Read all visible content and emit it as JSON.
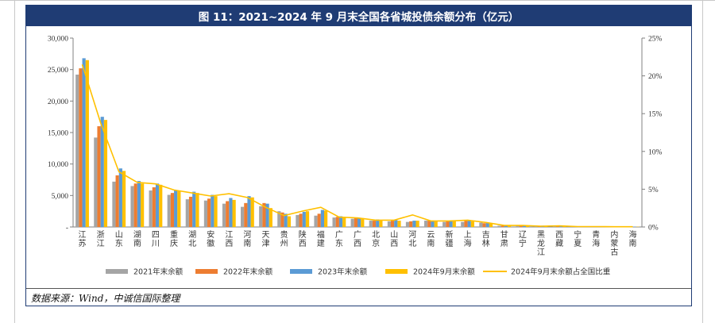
{
  "title": "图 11：2021~2024 年 9 月末全国各省城投债余额分布（亿元）",
  "source": "数据来源：Wind，中诚信国际整理",
  "chart_data": {
    "type": "bar",
    "categories": [
      "江苏",
      "浙江",
      "山东",
      "湖南",
      "四川",
      "重庆",
      "湖北",
      "安徽",
      "江西",
      "河南",
      "天津",
      "贵州",
      "陕西",
      "福建",
      "广东",
      "广西",
      "北京",
      "山西",
      "河北",
      "云南",
      "新疆",
      "上海",
      "吉林",
      "甘肃",
      "辽宁",
      "黑龙江",
      "西藏",
      "宁夏",
      "青海",
      "内蒙古",
      "海南"
    ],
    "series": [
      {
        "name": "2021年末余额",
        "color": "#a5a5a5",
        "values": [
          24200,
          14200,
          7200,
          6500,
          5800,
          5100,
          4400,
          4200,
          3700,
          3200,
          3300,
          2500,
          1900,
          1800,
          1500,
          1300,
          1000,
          900,
          800,
          1000,
          800,
          800,
          700,
          200,
          200,
          100,
          100,
          80,
          60,
          50,
          30
        ]
      },
      {
        "name": "2022年末余额",
        "color": "#ed7d31",
        "values": [
          25200,
          16000,
          8200,
          6900,
          6300,
          5400,
          4800,
          4500,
          4100,
          3800,
          3800,
          2300,
          2100,
          2100,
          1600,
          1400,
          1000,
          1000,
          900,
          1000,
          900,
          1000,
          600,
          200,
          200,
          150,
          150,
          70,
          50,
          50,
          30
        ]
      },
      {
        "name": "2023年末余额",
        "color": "#5b9bd5",
        "values": [
          26800,
          17500,
          9300,
          7300,
          6900,
          5800,
          5600,
          5100,
          4600,
          4900,
          3700,
          2100,
          2400,
          2700,
          1700,
          1400,
          1200,
          1100,
          1000,
          1000,
          1000,
          1000,
          700,
          300,
          200,
          200,
          200,
          80,
          60,
          50,
          50
        ]
      },
      {
        "name": "2024年9月末余额",
        "color": "#ffc000",
        "values": [
          26500,
          17000,
          8900,
          6900,
          6700,
          5700,
          5400,
          4900,
          4300,
          4700,
          3000,
          1700,
          2500,
          2600,
          1500,
          1400,
          1100,
          1000,
          1000,
          900,
          1000,
          900,
          600,
          300,
          200,
          100,
          200,
          80,
          60,
          40,
          40
        ]
      },
      {
        "name": "2024年9月末余额占全国比重",
        "color": "#ffc000",
        "axis": "right",
        "values": [
          21.5,
          13.8,
          7.3,
          5.9,
          5.7,
          4.9,
          4.5,
          4.1,
          4.4,
          3.9,
          2.6,
          1.5,
          2.1,
          2.6,
          1.3,
          1.2,
          0.9,
          0.9,
          1.6,
          0.8,
          0.8,
          0.9,
          0.6,
          0.2,
          0.2,
          0.1,
          0.15,
          0.05,
          0.05,
          0.03,
          0.03
        ]
      }
    ],
    "ylim": [
      0,
      30000
    ],
    "y_ticks": [
      "-",
      "5,000",
      "10,000",
      "15,000",
      "20,000",
      "25,000",
      "30,000"
    ],
    "y2lim": [
      0,
      25
    ],
    "y2_ticks": [
      "0%",
      "5%",
      "10%",
      "15%",
      "20%",
      "25%"
    ],
    "legend_position": "bottom",
    "grid": false
  }
}
